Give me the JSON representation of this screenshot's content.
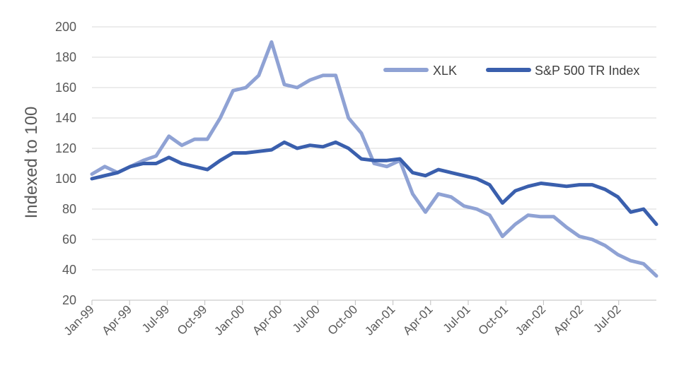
{
  "chart_data": {
    "type": "line",
    "title": "",
    "xlabel": "",
    "ylabel": "Indexed to 100",
    "ylim": [
      20,
      200
    ],
    "yticks": [
      20,
      40,
      60,
      80,
      100,
      120,
      140,
      160,
      180,
      200
    ],
    "x_tick_labels": [
      "Jan-99",
      "Apr-99",
      "Jul-99",
      "Oct-99",
      "Jan-00",
      "Apr-00",
      "Jul-00",
      "Oct-00",
      "Jan-01",
      "Apr-01",
      "Jul-01",
      "Oct-01",
      "Jan-02",
      "Apr-02",
      "Jul-02"
    ],
    "grid": "horizontal",
    "legend_position": "top-right",
    "colors": {
      "XLK": "#8fa2d4",
      "S&P 500 TR Index": "#3a5fad"
    },
    "x": [
      "Jan-99",
      "Feb-99",
      "Mar-99",
      "Apr-99",
      "May-99",
      "Jun-99",
      "Jul-99",
      "Aug-99",
      "Sep-99",
      "Oct-99",
      "Nov-99",
      "Dec-99",
      "Jan-00",
      "Feb-00",
      "Mar-00",
      "Apr-00",
      "May-00",
      "Jun-00",
      "Jul-00",
      "Aug-00",
      "Sep-00",
      "Oct-00",
      "Nov-00",
      "Dec-00",
      "Jan-01",
      "Feb-01",
      "Mar-01",
      "Apr-01",
      "May-01",
      "Jun-01",
      "Jul-01",
      "Aug-01",
      "Sep-01",
      "Oct-01",
      "Nov-01",
      "Dec-01",
      "Jan-02",
      "Feb-02",
      "Mar-02",
      "Apr-02",
      "May-02",
      "Jun-02",
      "Jul-02",
      "Aug-02",
      "Sep-02"
    ],
    "series": [
      {
        "name": "XLK",
        "values": [
          103,
          108,
          104,
          108,
          112,
          115,
          128,
          122,
          126,
          126,
          140,
          158,
          160,
          168,
          190,
          162,
          160,
          165,
          168,
          168,
          140,
          130,
          110,
          108,
          112,
          90,
          78,
          90,
          88,
          82,
          80,
          76,
          62,
          70,
          76,
          75,
          75,
          68,
          62,
          60,
          56,
          50,
          46,
          44,
          36
        ]
      },
      {
        "name": "S&P 500 TR Index",
        "values": [
          100,
          102,
          104,
          108,
          110,
          110,
          114,
          110,
          108,
          106,
          112,
          117,
          117,
          118,
          119,
          124,
          120,
          122,
          121,
          124,
          120,
          113,
          112,
          112,
          113,
          104,
          102,
          106,
          104,
          102,
          100,
          96,
          84,
          92,
          95,
          97,
          96,
          95,
          96,
          96,
          93,
          88,
          78,
          80,
          70
        ]
      }
    ]
  }
}
